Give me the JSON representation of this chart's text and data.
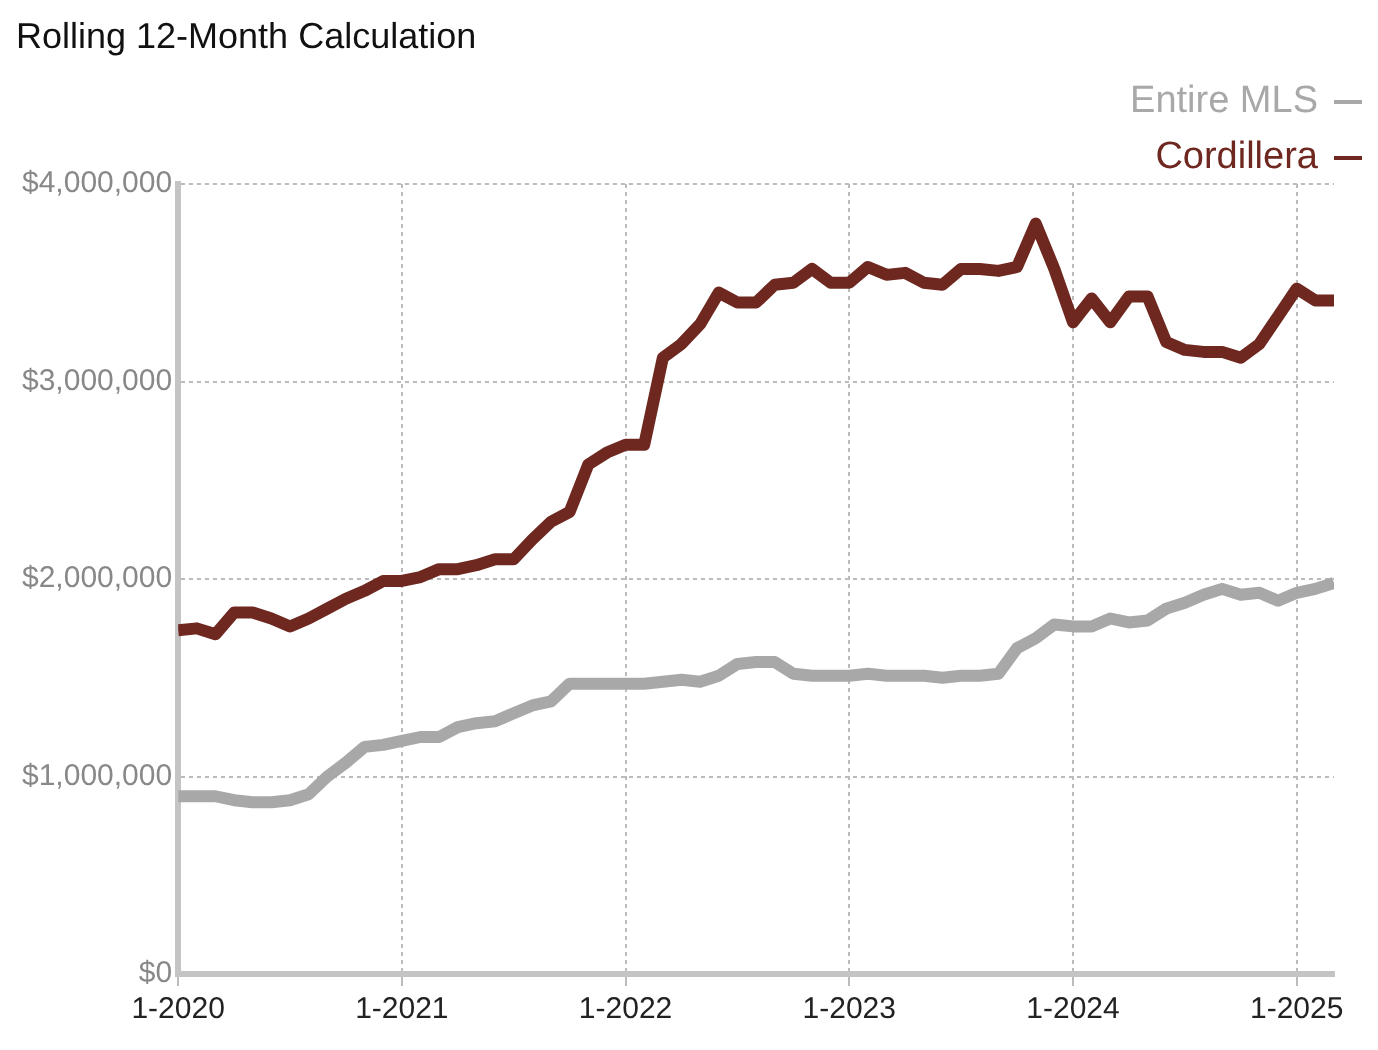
{
  "chart_data": {
    "type": "line",
    "title": "Rolling 12-Month Calculation",
    "x": [
      "2020-01",
      "2020-02",
      "2020-03",
      "2020-04",
      "2020-05",
      "2020-06",
      "2020-07",
      "2020-08",
      "2020-09",
      "2020-10",
      "2020-11",
      "2020-12",
      "2021-01",
      "2021-02",
      "2021-03",
      "2021-04",
      "2021-05",
      "2021-06",
      "2021-07",
      "2021-08",
      "2021-09",
      "2021-10",
      "2021-11",
      "2021-12",
      "2022-01",
      "2022-02",
      "2022-03",
      "2022-04",
      "2022-05",
      "2022-06",
      "2022-07",
      "2022-08",
      "2022-09",
      "2022-10",
      "2022-11",
      "2022-12",
      "2023-01",
      "2023-02",
      "2023-03",
      "2023-04",
      "2023-05",
      "2023-06",
      "2023-07",
      "2023-08",
      "2023-09",
      "2023-10",
      "2023-11",
      "2023-12",
      "2024-01",
      "2024-02",
      "2024-03",
      "2024-04",
      "2024-05",
      "2024-06",
      "2024-07",
      "2024-08",
      "2024-09",
      "2024-10",
      "2024-11",
      "2024-12",
      "2025-01",
      "2025-02",
      "2025-03"
    ],
    "series": [
      {
        "name": "Entire MLS",
        "color": "#a8a8a8",
        "values": [
          900000,
          900000,
          900000,
          880000,
          870000,
          870000,
          880000,
          910000,
          1000000,
          1070000,
          1150000,
          1160000,
          1180000,
          1200000,
          1200000,
          1250000,
          1270000,
          1280000,
          1320000,
          1360000,
          1380000,
          1470000,
          1470000,
          1470000,
          1470000,
          1470000,
          1480000,
          1490000,
          1480000,
          1510000,
          1570000,
          1580000,
          1580000,
          1520000,
          1510000,
          1510000,
          1510000,
          1520000,
          1510000,
          1510000,
          1510000,
          1500000,
          1510000,
          1510000,
          1520000,
          1650000,
          1700000,
          1770000,
          1760000,
          1760000,
          1800000,
          1780000,
          1790000,
          1850000,
          1880000,
          1920000,
          1950000,
          1920000,
          1930000,
          1890000,
          1930000,
          1950000,
          1980000
        ]
      },
      {
        "name": "Cordillera",
        "color": "#6e2820",
        "values": [
          1740000,
          1750000,
          1720000,
          1830000,
          1830000,
          1800000,
          1760000,
          1800000,
          1850000,
          1900000,
          1940000,
          1990000,
          1990000,
          2010000,
          2050000,
          2050000,
          2070000,
          2100000,
          2100000,
          2200000,
          2290000,
          2340000,
          2580000,
          2640000,
          2680000,
          2680000,
          3120000,
          3190000,
          3290000,
          3450000,
          3400000,
          3400000,
          3490000,
          3500000,
          3570000,
          3500000,
          3500000,
          3580000,
          3540000,
          3550000,
          3500000,
          3490000,
          3570000,
          3570000,
          3560000,
          3580000,
          3800000,
          3570000,
          3300000,
          3420000,
          3300000,
          3430000,
          3430000,
          3200000,
          3160000,
          3150000,
          3150000,
          3120000,
          3190000,
          3330000,
          3470000,
          3410000,
          3410000
        ]
      }
    ],
    "xlim": [
      "2020-01",
      "2025-03"
    ],
    "xticks": [
      {
        "value": "2020-01",
        "label": "1-2020"
      },
      {
        "value": "2021-01",
        "label": "1-2021"
      },
      {
        "value": "2022-01",
        "label": "1-2022"
      },
      {
        "value": "2023-01",
        "label": "1-2023"
      },
      {
        "value": "2024-01",
        "label": "1-2024"
      },
      {
        "value": "2025-01",
        "label": "1-2025"
      }
    ],
    "ylim": [
      0,
      4000000
    ],
    "yticks": [
      {
        "value": 0,
        "label": "$0"
      },
      {
        "value": 1000000,
        "label": "$1,000,000"
      },
      {
        "value": 2000000,
        "label": "$2,000,000"
      },
      {
        "value": 3000000,
        "label": "$3,000,000"
      },
      {
        "value": 4000000,
        "label": "$4,000,000"
      }
    ],
    "grid": true,
    "legend": "top right",
    "marker": "none",
    "line_style": "solid"
  }
}
